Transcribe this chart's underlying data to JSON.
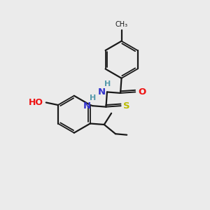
{
  "bg_color": "#ebebeb",
  "bond_color": "#1a1a1a",
  "atom_colors": {
    "N": "#3333cc",
    "O": "#ee1111",
    "S": "#bbbb00",
    "H": "#5599aa",
    "C": "#1a1a1a"
  }
}
